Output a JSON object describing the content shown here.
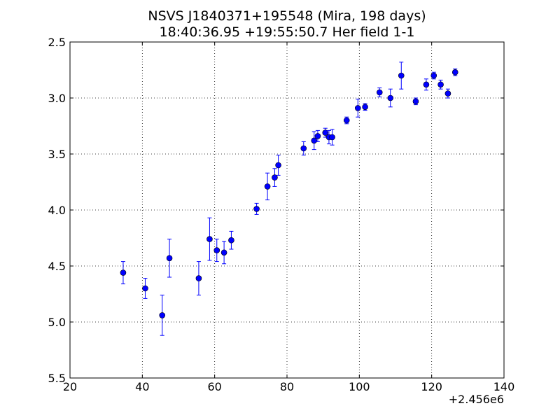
{
  "chart_data": {
    "type": "scatter",
    "title": [
      "NSVS J1840371+195548 (Mira, 198 days)",
      "18:40:36.95 +19:55:50.7 Her field 1-1"
    ],
    "xlabel": "",
    "ylabel": "",
    "xlim": [
      20,
      140
    ],
    "ylim": [
      5.5,
      2.5
    ],
    "y_inverted": true,
    "x_offset_label": "+2.456e6",
    "x_ticks": [
      20,
      40,
      60,
      80,
      100,
      120,
      140
    ],
    "y_ticks": [
      2.5,
      3.0,
      3.5,
      4.0,
      4.5,
      5.0,
      5.5
    ],
    "x_tick_labels": [
      "20",
      "40",
      "60",
      "80",
      "100",
      "120",
      "140"
    ],
    "y_tick_labels": [
      "2.5",
      "3.0",
      "3.5",
      "4.0",
      "4.5",
      "5.0",
      "5.5"
    ],
    "grid": true,
    "marker_color": "#0000ff",
    "series": [
      {
        "points": [
          {
            "x": 34.7,
            "y": 4.56,
            "err": 0.1
          },
          {
            "x": 40.8,
            "y": 4.7,
            "err": 0.09
          },
          {
            "x": 45.5,
            "y": 4.94,
            "err": 0.18
          },
          {
            "x": 47.5,
            "y": 4.43,
            "err": 0.17
          },
          {
            "x": 55.6,
            "y": 4.61,
            "err": 0.15
          },
          {
            "x": 58.6,
            "y": 4.26,
            "err": 0.19
          },
          {
            "x": 60.6,
            "y": 4.36,
            "err": 0.1
          },
          {
            "x": 62.6,
            "y": 4.38,
            "err": 0.1
          },
          {
            "x": 64.6,
            "y": 4.27,
            "err": 0.08
          },
          {
            "x": 71.6,
            "y": 3.99,
            "err": 0.05
          },
          {
            "x": 74.6,
            "y": 3.79,
            "err": 0.12
          },
          {
            "x": 76.6,
            "y": 3.71,
            "err": 0.08
          },
          {
            "x": 77.6,
            "y": 3.6,
            "err": 0.09
          },
          {
            "x": 84.6,
            "y": 3.45,
            "err": 0.06
          },
          {
            "x": 87.5,
            "y": 3.38,
            "err": 0.08
          },
          {
            "x": 88.5,
            "y": 3.34,
            "err": 0.05
          },
          {
            "x": 90.6,
            "y": 3.31,
            "err": 0.04
          },
          {
            "x": 91.6,
            "y": 3.35,
            "err": 0.06
          },
          {
            "x": 92.5,
            "y": 3.35,
            "err": 0.07
          },
          {
            "x": 96.5,
            "y": 3.2,
            "err": 0.03
          },
          {
            "x": 99.6,
            "y": 3.09,
            "err": 0.08
          },
          {
            "x": 101.6,
            "y": 3.08,
            "err": 0.03
          },
          {
            "x": 105.6,
            "y": 2.95,
            "err": 0.04
          },
          {
            "x": 108.6,
            "y": 3.0,
            "err": 0.08
          },
          {
            "x": 111.6,
            "y": 2.8,
            "err": 0.12
          },
          {
            "x": 115.6,
            "y": 3.03,
            "err": 0.03
          },
          {
            "x": 118.5,
            "y": 2.88,
            "err": 0.05
          },
          {
            "x": 120.6,
            "y": 2.8,
            "err": 0.03
          },
          {
            "x": 122.5,
            "y": 2.88,
            "err": 0.04
          },
          {
            "x": 124.5,
            "y": 2.96,
            "err": 0.04
          },
          {
            "x": 126.5,
            "y": 2.77,
            "err": 0.03
          }
        ]
      }
    ]
  }
}
